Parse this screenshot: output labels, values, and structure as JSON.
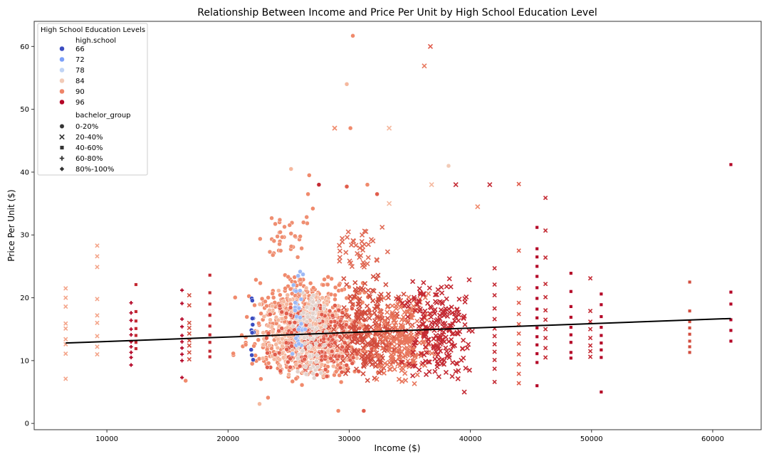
{
  "chart_data": {
    "type": "scatter",
    "title": "Relationship Between Income and Price Per Unit by High School Education Level",
    "xlabel": "Income ($)",
    "ylabel": "Price Per Unit ($)",
    "xlim": [
      4000,
      64000
    ],
    "ylim": [
      -1,
      64
    ],
    "xticks": [
      10000,
      20000,
      30000,
      40000,
      50000,
      60000
    ],
    "yticks": [
      0,
      10,
      20,
      30,
      40,
      50,
      60
    ],
    "grid": false,
    "legend": {
      "title": "High School Education Levels",
      "placement": "upper-left",
      "hue_title": "high.school",
      "hue_levels": [
        {
          "label": "66",
          "color": "#3b4cc0"
        },
        {
          "label": "72",
          "color": "#7b9ff9"
        },
        {
          "label": "78",
          "color": "#c0d4f5"
        },
        {
          "label": "84",
          "color": "#f2cbb7"
        },
        {
          "label": "90",
          "color": "#ee8468"
        },
        {
          "label": "96",
          "color": "#b40426"
        }
      ],
      "style_title": "bachelor_group",
      "style_levels": [
        {
          "label": "0-20%",
          "marker": "circle"
        },
        {
          "label": "20-40%",
          "marker": "x"
        },
        {
          "label": "40-60%",
          "marker": "square"
        },
        {
          "label": "60-80%",
          "marker": "plus"
        },
        {
          "label": "80%-100%",
          "marker": "diamond"
        }
      ]
    },
    "regression_line": {
      "x": [
        6600,
        61500
      ],
      "y": [
        12.8,
        16.7
      ],
      "color": "#000000"
    },
    "point_columns": [
      {
        "x": 6600,
        "color": "#f4a58a",
        "marker": "x",
        "ys": [
          21.5,
          20.0,
          18.6,
          15.9,
          15.1,
          13.4,
          12.6,
          11.1,
          7.1
        ]
      },
      {
        "x": 9200,
        "color": "#f4a58a",
        "marker": "x",
        "ys": [
          28.3,
          26.6,
          24.9,
          19.8,
          17.2,
          16.0,
          13.9,
          12.2,
          11.0
        ]
      },
      {
        "x": 12000,
        "color": "#b40426",
        "marker": "plus",
        "ys": [
          19.2,
          17.6,
          16.4,
          15.0,
          14.1,
          13.0,
          12.2,
          11.3,
          10.5,
          9.3
        ]
      },
      {
        "x": 12400,
        "color": "#c42a33",
        "marker": "square",
        "ys": [
          22.1,
          17.8,
          16.3,
          15.1,
          14.0,
          12.9,
          11.9
        ]
      },
      {
        "x": 16200,
        "color": "#b40426",
        "marker": "plus",
        "ys": [
          21.2,
          19.1,
          16.6,
          15.4,
          14.0,
          13.0,
          12.0,
          11.0,
          10.0,
          7.3
        ]
      },
      {
        "x": 16800,
        "color": "#d24d3e",
        "marker": "x",
        "ys": [
          20.4,
          18.8,
          16.0,
          15.2,
          14.3,
          13.2,
          12.4,
          11.3,
          10.2
        ]
      },
      {
        "x": 18500,
        "color": "#c42a33",
        "marker": "square",
        "ys": [
          23.6,
          20.8,
          19.0,
          17.2,
          15.5,
          14.1,
          12.9,
          11.5,
          10.6
        ]
      },
      {
        "x": 42000,
        "color": "#c42a33",
        "marker": "x",
        "ys": [
          24.7,
          22.1,
          20.4,
          18.3,
          16.6,
          15.1,
          13.9,
          12.6,
          11.4,
          10.1,
          8.7,
          6.6
        ]
      },
      {
        "x": 44000,
        "color": "#e05b4b",
        "marker": "x",
        "ys": [
          38.1,
          27.5,
          21.5,
          19.2,
          17.4,
          15.8,
          14.3,
          12.7,
          11.0,
          9.4,
          7.9,
          6.4
        ]
      },
      {
        "x": 45500,
        "color": "#b40426",
        "marker": "square",
        "ys": [
          31.2,
          27.8,
          26.5,
          25.0,
          23.4,
          21.6,
          19.9,
          18.2,
          16.8,
          15.2,
          13.8,
          12.5,
          11.1,
          9.7,
          6.0
        ]
      },
      {
        "x": 46200,
        "color": "#c42a33",
        "marker": "x",
        "ys": [
          35.9,
          30.7,
          26.4,
          22.2,
          20.1,
          18.0,
          16.5,
          15.0,
          13.6,
          12.0,
          10.5
        ]
      },
      {
        "x": 48300,
        "color": "#b40426",
        "marker": "square",
        "ys": [
          23.9,
          21.0,
          18.6,
          16.9,
          15.3,
          14.1,
          12.9,
          11.3,
          10.4
        ]
      },
      {
        "x": 49900,
        "color": "#c42a33",
        "marker": "x",
        "ys": [
          23.1,
          17.9,
          16.2,
          15.0,
          13.6,
          12.4,
          11.5,
          10.6
        ]
      },
      {
        "x": 50800,
        "color": "#b40426",
        "marker": "square",
        "ys": [
          20.6,
          18.9,
          17.0,
          15.3,
          14.0,
          12.8,
          11.7,
          10.5,
          5.0
        ]
      },
      {
        "x": 58100,
        "color": "#d24d3e",
        "marker": "square",
        "ys": [
          22.5,
          17.9,
          16.2,
          15.2,
          14.2,
          13.1,
          12.2,
          11.3
        ]
      },
      {
        "x": 61500,
        "color": "#b40426",
        "marker": "square",
        "ys": [
          41.2,
          20.9,
          19.0,
          16.5,
          14.8,
          13.1
        ]
      }
    ],
    "point_clouds": [
      {
        "x_range": [
          19500,
          33500
        ],
        "y_range": [
          6,
          24
        ],
        "count": 700,
        "color": "#f08a6c",
        "marker": "circle"
      },
      {
        "x_range": [
          21500,
          31500
        ],
        "y_range": [
          7,
          22
        ],
        "count": 350,
        "color": "#f5b89e",
        "marker": "circle"
      },
      {
        "x_range": [
          22000,
          33000
        ],
        "y_range": [
          7,
          20
        ],
        "count": 220,
        "color": "#e15d4c",
        "marker": "circle"
      },
      {
        "x_range": [
          28000,
          36000
        ],
        "y_range": [
          6,
          24
        ],
        "count": 260,
        "color": "#d24d3e",
        "marker": "x"
      },
      {
        "x_range": [
          31000,
          38000
        ],
        "y_range": [
          6,
          21
        ],
        "count": 220,
        "color": "#e8765c",
        "marker": "x"
      },
      {
        "x_range": [
          33000,
          41500
        ],
        "y_range": [
          6,
          24
        ],
        "count": 220,
        "color": "#c42a33",
        "marker": "x"
      },
      {
        "x_range": [
          25000,
          29000
        ],
        "y_range": [
          6,
          23
        ],
        "count": 80,
        "color": "#e3d2cc",
        "marker": "circle"
      },
      {
        "x_range": [
          25000,
          26500
        ],
        "y_range": [
          8,
          25
        ],
        "count": 30,
        "color": "#9db9f5",
        "marker": "circle"
      },
      {
        "x_range": [
          21800,
          22300
        ],
        "y_range": [
          8.5,
          22.5
        ],
        "count": 12,
        "color": "#3b4cc0",
        "marker": "circle"
      },
      {
        "x_range": [
          22000,
          27500
        ],
        "y_range": [
          25,
          34
        ],
        "count": 35,
        "color": "#ef8f72",
        "marker": "circle"
      },
      {
        "x_range": [
          28000,
          33500
        ],
        "y_range": [
          24,
          32
        ],
        "count": 40,
        "color": "#e06a55",
        "marker": "x"
      }
    ],
    "outliers": [
      {
        "x": 30300,
        "y": 61.7,
        "color": "#f08a6c",
        "marker": "circle"
      },
      {
        "x": 36700,
        "y": 60.0,
        "color": "#e05b4b",
        "marker": "x"
      },
      {
        "x": 36200,
        "y": 56.9,
        "color": "#e87a60",
        "marker": "x"
      },
      {
        "x": 29800,
        "y": 54.0,
        "color": "#f5b89e",
        "marker": "circle"
      },
      {
        "x": 28800,
        "y": 47.0,
        "color": "#f08a6c",
        "marker": "x"
      },
      {
        "x": 30100,
        "y": 47.0,
        "color": "#f08a6c",
        "marker": "circle"
      },
      {
        "x": 33300,
        "y": 47.0,
        "color": "#f5b89e",
        "marker": "x"
      },
      {
        "x": 25200,
        "y": 40.5,
        "color": "#f5b89e",
        "marker": "circle"
      },
      {
        "x": 26700,
        "y": 39.5,
        "color": "#f08a6c",
        "marker": "circle"
      },
      {
        "x": 38200,
        "y": 41.0,
        "color": "#f2cbb7",
        "marker": "circle"
      },
      {
        "x": 36800,
        "y": 38.0,
        "color": "#f5b89e",
        "marker": "x"
      },
      {
        "x": 38800,
        "y": 38.0,
        "color": "#c42a33",
        "marker": "x"
      },
      {
        "x": 41600,
        "y": 38.0,
        "color": "#c42a33",
        "marker": "x"
      },
      {
        "x": 40600,
        "y": 34.5,
        "color": "#f08a6c",
        "marker": "x"
      },
      {
        "x": 31500,
        "y": 38.0,
        "color": "#f08a6c",
        "marker": "circle"
      },
      {
        "x": 27500,
        "y": 38.0,
        "color": "#c42a33",
        "marker": "circle"
      },
      {
        "x": 29800,
        "y": 37.7,
        "color": "#e15d4c",
        "marker": "circle"
      },
      {
        "x": 26600,
        "y": 36.5,
        "color": "#f08a6c",
        "marker": "circle"
      },
      {
        "x": 32300,
        "y": 36.5,
        "color": "#e15d4c",
        "marker": "circle"
      },
      {
        "x": 33300,
        "y": 35.0,
        "color": "#f5b89e",
        "marker": "x"
      },
      {
        "x": 27000,
        "y": 34.2,
        "color": "#f08a6c",
        "marker": "circle"
      },
      {
        "x": 29100,
        "y": 2.0,
        "color": "#f08a6c",
        "marker": "circle"
      },
      {
        "x": 31200,
        "y": 2.0,
        "color": "#e15d4c",
        "marker": "circle"
      },
      {
        "x": 22600,
        "y": 3.1,
        "color": "#f5b89e",
        "marker": "circle"
      },
      {
        "x": 23300,
        "y": 4.1,
        "color": "#f08a6c",
        "marker": "circle"
      },
      {
        "x": 16500,
        "y": 6.8,
        "color": "#f08a6c",
        "marker": "circle"
      },
      {
        "x": 39500,
        "y": 5.0,
        "color": "#c42a33",
        "marker": "x"
      }
    ]
  }
}
